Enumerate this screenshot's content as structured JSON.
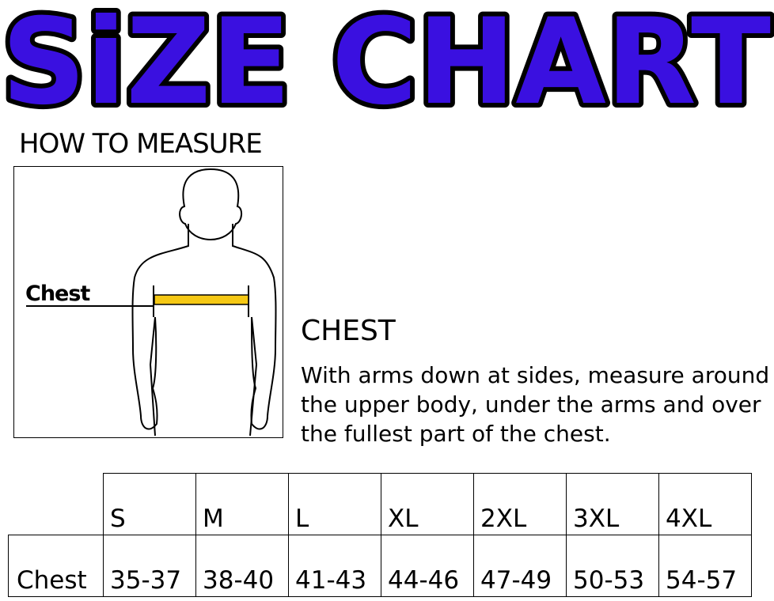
{
  "title": "SiZE CHART",
  "title_color": "#3a10e0",
  "how_to_measure": "HOW TO MEASURE",
  "figure": {
    "chest_label": "Chest",
    "tape_color": "#f5c814"
  },
  "chest_section": {
    "heading": "CHEST",
    "description": "With arms down at sides, measure around the upper body, under the arms and over the fullest part of the chest."
  },
  "table": {
    "sizes": [
      "S",
      "M",
      "L",
      "XL",
      "2XL",
      "3XL",
      "4XL"
    ],
    "rows": [
      {
        "label": "Chest",
        "values": [
          "35-37",
          "38-40",
          "41-43",
          "44-46",
          "47-49",
          "50-53",
          "54-57"
        ]
      }
    ]
  }
}
